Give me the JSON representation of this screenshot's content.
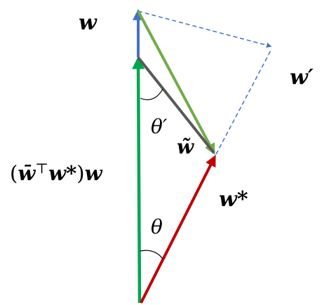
{
  "labels": {
    "w": "w",
    "w_prime": "w′",
    "w_tilde": "w̃",
    "w_star": "w*",
    "theta_prime": "θ′",
    "theta": "θ",
    "projection_open": "(",
    "projection_wbar": "w̄",
    "projection_top": "⊤",
    "projection_wstar": "w*",
    "projection_close": ")",
    "projection_w": "w"
  },
  "colors": {
    "w_vector": "#4472c4",
    "projection_vector": "#00a651",
    "diagonal_vector": "#70ad47",
    "w_tilde_vector": "#595959",
    "w_star_vector": "#c00000",
    "dashed_lines": "#4472c4",
    "angle_arc": "#000000"
  }
}
